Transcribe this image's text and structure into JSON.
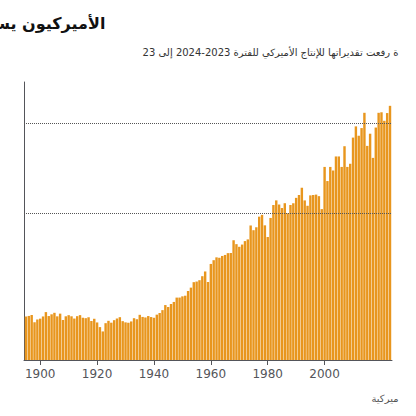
{
  "chart_data": {
    "type": "bar",
    "title": "الأميركيون يستعدون لحصاد محصول ذ",
    "subtitle": "ة رفعت تقديراتها للإنتاج الأميركي للفترة 2023-2024 إلى 23",
    "footer": "ميركية",
    "color": "#E8961E",
    "x": [
      1895,
      1896,
      1897,
      1898,
      1899,
      1900,
      1901,
      1902,
      1903,
      1904,
      1905,
      1906,
      1907,
      1908,
      1909,
      1910,
      1911,
      1912,
      1913,
      1914,
      1915,
      1916,
      1917,
      1918,
      1919,
      1920,
      1921,
      1922,
      1923,
      1924,
      1925,
      1926,
      1927,
      1928,
      1929,
      1930,
      1931,
      1932,
      1933,
      1934,
      1935,
      1936,
      1937,
      1938,
      1939,
      1940,
      1941,
      1942,
      1943,
      1944,
      1945,
      1946,
      1947,
      1948,
      1949,
      1950,
      1951,
      1952,
      1953,
      1954,
      1955,
      1956,
      1957,
      1958,
      1959,
      1960,
      1961,
      1962,
      1963,
      1964,
      1965,
      1966,
      1967,
      1968,
      1969,
      1970,
      1971,
      1972,
      1973,
      1974,
      1975,
      1976,
      1977,
      1978,
      1979,
      1980,
      1981,
      1982,
      1983,
      1984,
      1985,
      1986,
      1987,
      1988,
      1989,
      1990,
      1991,
      1992,
      1993,
      1994,
      1995,
      1996,
      1997,
      1998,
      1999,
      2000,
      2001,
      2002,
      2003,
      2004,
      2005,
      2006,
      2007,
      2008,
      2009,
      2010,
      2011,
      2012,
      2013,
      2014,
      2015,
      2016,
      2017,
      2018,
      2019,
      2020,
      2021,
      2022,
      2023
    ],
    "values": [
      2660,
      2695,
      2751,
      2308,
      2478,
      2528,
      2663,
      2929,
      2688,
      2794,
      2886,
      2669,
      2835,
      2446,
      2672,
      2741,
      2673,
      2535,
      2680,
      2744,
      2584,
      2558,
      2613,
      2386,
      2521,
      2296,
      2012,
      1747,
      2252,
      2396,
      2282,
      2435,
      2537,
      2619,
      2376,
      2302,
      2285,
      2358,
      2556,
      2493,
      2763,
      2634,
      2601,
      2688,
      2626,
      2583,
      2773,
      2873,
      3050,
      3360,
      3239,
      3424,
      3551,
      3816,
      3818,
      3892,
      3931,
      4219,
      4425,
      4760,
      4797,
      4880,
      5124,
      5414,
      4770,
      5875,
      6103,
      6277,
      6252,
      6362,
      6424,
      6534,
      6543,
      7323,
      7084,
      6922,
      7059,
      7271,
      7374,
      8226,
      7937,
      8117,
      8765,
      8875,
      8235,
      7520,
      8687,
      9477,
      9761,
      9507,
      9293,
      9588,
      8967,
      9477,
      9585,
      9915,
      10090,
      10534,
      9759,
      9431,
      10067,
      10089,
      10114,
      10019,
      9227,
      11807,
      10943,
      11807,
      11588,
      12447,
      12447,
      11807,
      13073,
      11807,
      12000,
      13600,
      14286,
      13714,
      14182,
      15117,
      13093,
      13838,
      12360,
      14214,
      15116,
      15148,
      14627,
      15100,
      15543
    ],
    "xlim": [
      1894.3,
      2023.7
    ],
    "xticks": [
      1900,
      1920,
      1940,
      1960,
      1980,
      2000
    ],
    "ylim": [
      0,
      17000
    ],
    "reference_lines": [
      14500,
      9000
    ],
    "grid": false,
    "tick_labels": "x"
  }
}
